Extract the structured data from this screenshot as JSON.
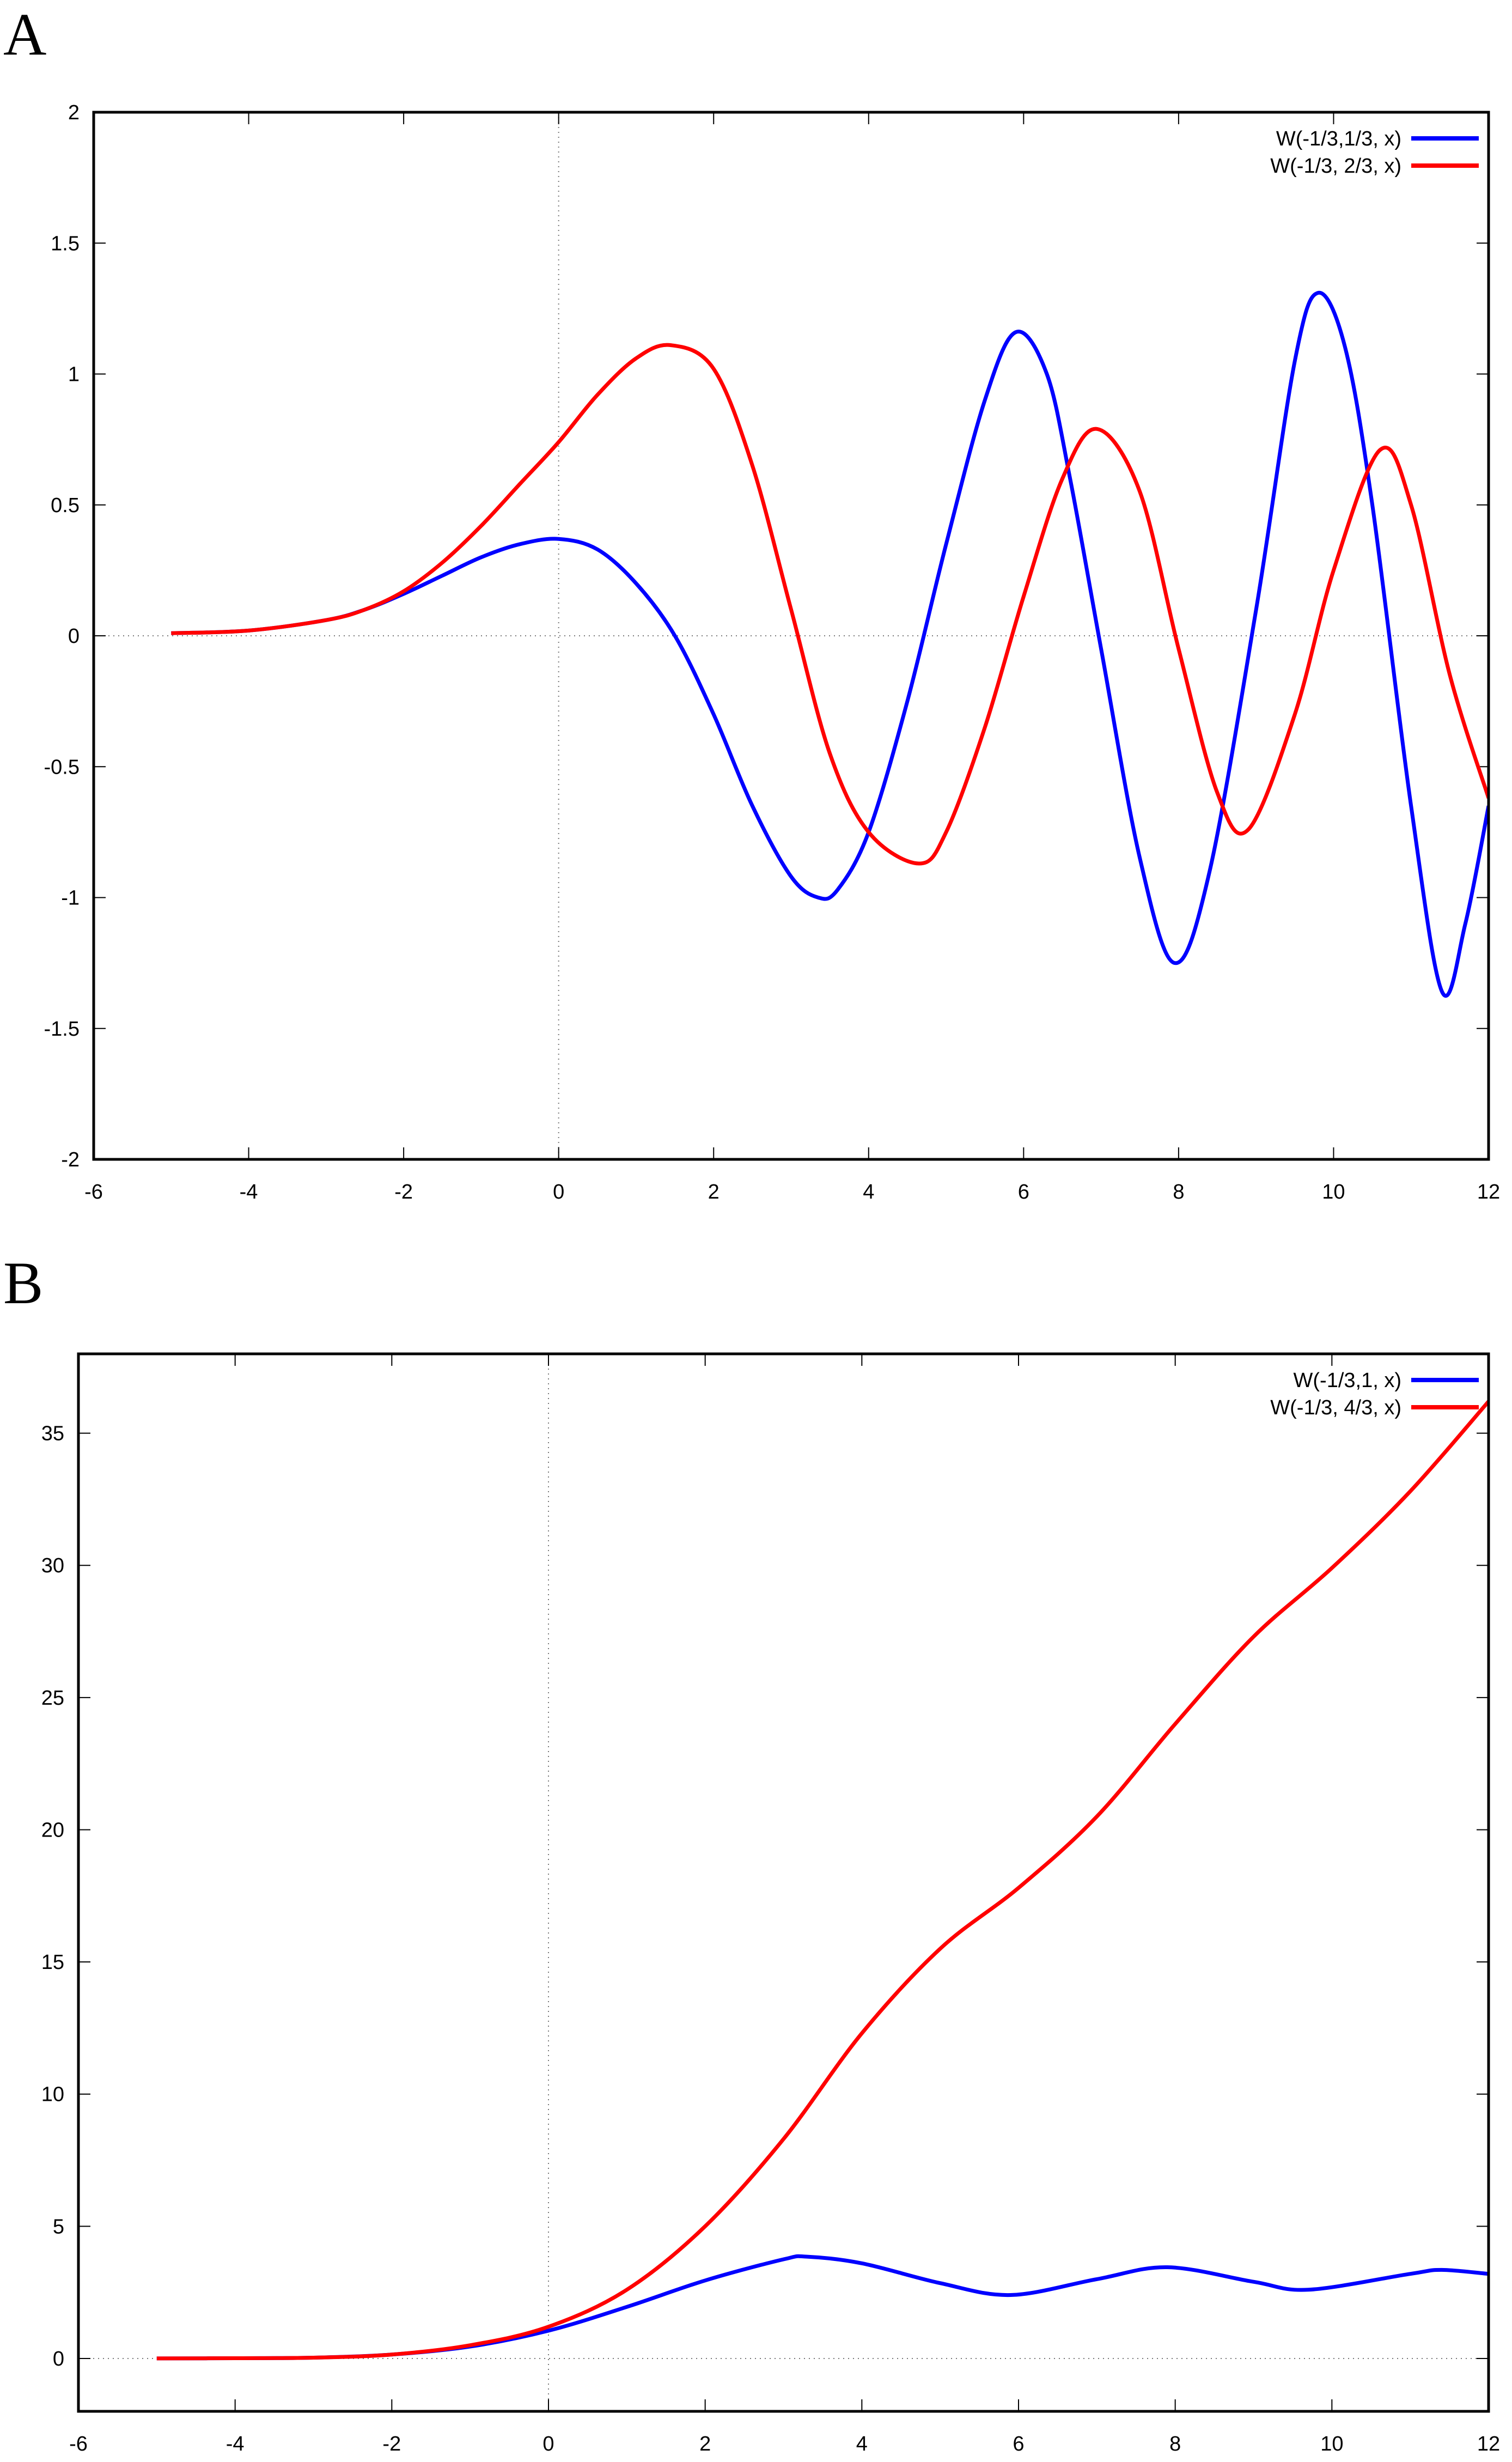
{
  "panels": [
    {
      "label": "A"
    },
    {
      "label": "B"
    }
  ],
  "chart_data": [
    {
      "type": "line",
      "panel": "A",
      "title": "",
      "xlabel": "",
      "ylabel": "",
      "xlim": [
        -6,
        12
      ],
      "ylim": [
        -2,
        2
      ],
      "xticks": [
        -6,
        -4,
        -2,
        0,
        2,
        4,
        6,
        8,
        10,
        12
      ],
      "yticks": [
        -2,
        -1.5,
        -1,
        -0.5,
        0,
        0.5,
        1,
        1.5,
        2
      ],
      "xtick_labels": [
        "-6",
        "-4",
        "-2",
        "0",
        "2",
        "4",
        "6",
        "8",
        "10",
        "12"
      ],
      "ytick_labels": [
        "-2",
        "-1.5",
        "-1",
        "-0.5",
        "0",
        "0.5",
        "1",
        "1.5",
        "2"
      ],
      "grid": false,
      "zero_axes_dotted": true,
      "legend_position": "top-right",
      "series": [
        {
          "name": "W(-1/3,1/3, x)",
          "color": "#0000ff",
          "x": [
            -5,
            -4,
            -3,
            -2.5,
            -2,
            -1.5,
            -1,
            -0.5,
            0,
            0.5,
            1,
            1.5,
            2,
            2.5,
            3,
            3.35,
            3.6,
            4,
            4.5,
            5,
            5.5,
            5.9,
            6.3,
            6.6,
            7,
            7.5,
            7.95,
            8.4,
            9,
            9.5,
            9.8,
            10.15,
            10.5,
            11,
            11.4,
            11.7,
            12
          ],
          "y": [
            0.01,
            0.02,
            0.06,
            0.1,
            0.16,
            0.23,
            0.3,
            0.35,
            0.37,
            0.33,
            0.2,
            0.0,
            -0.3,
            -0.65,
            -0.92,
            -1.0,
            -0.97,
            -0.75,
            -0.25,
            0.35,
            0.9,
            1.16,
            1.0,
            0.6,
            -0.05,
            -0.85,
            -1.25,
            -0.9,
            0.1,
            1.05,
            1.31,
            1.1,
            0.5,
            -0.65,
            -1.36,
            -1.1,
            -0.65
          ]
        },
        {
          "name": "W(-1/3, 2/3, x)",
          "color": "#ff0000",
          "x": [
            -5,
            -4,
            -3,
            -2.5,
            -2,
            -1.5,
            -1,
            -0.5,
            0,
            0.5,
            1,
            1.45,
            2,
            2.5,
            3,
            3.5,
            4,
            4.65,
            5,
            5.5,
            6,
            6.5,
            6.95,
            7.5,
            8,
            8.5,
            8.9,
            9.5,
            10,
            10.6,
            11,
            11.5,
            12
          ],
          "y": [
            0.01,
            0.02,
            0.06,
            0.1,
            0.17,
            0.28,
            0.42,
            0.58,
            0.74,
            0.92,
            1.06,
            1.11,
            1.02,
            0.65,
            0.1,
            -0.45,
            -0.75,
            -0.87,
            -0.75,
            -0.35,
            0.15,
            0.6,
            0.79,
            0.55,
            -0.05,
            -0.6,
            -0.74,
            -0.3,
            0.25,
            0.71,
            0.5,
            -0.15,
            -0.62
          ]
        }
      ]
    },
    {
      "type": "line",
      "panel": "B",
      "title": "",
      "xlabel": "",
      "ylabel": "",
      "xlim": [
        -6,
        12
      ],
      "ylim": [
        -2,
        38
      ],
      "xticks": [
        -6,
        -4,
        -2,
        0,
        2,
        4,
        6,
        8,
        10,
        12
      ],
      "yticks": [
        0,
        5,
        10,
        15,
        20,
        25,
        30,
        35
      ],
      "xtick_labels": [
        "-6",
        "-4",
        "-2",
        "0",
        "2",
        "4",
        "6",
        "8",
        "10",
        "12"
      ],
      "ytick_labels": [
        "0",
        "5",
        "10",
        "15",
        "20",
        "25",
        "30",
        "35"
      ],
      "grid": false,
      "zero_axes_dotted": true,
      "legend_position": "top-right",
      "series": [
        {
          "name": "W(-1/3,1, x)",
          "color": "#0000ff",
          "x": [
            -5,
            -4,
            -3,
            -2,
            -1,
            0,
            1,
            2,
            3,
            3.3,
            4,
            5,
            5.9,
            7,
            7.9,
            9,
            9.7,
            11,
            11.4,
            12
          ],
          "y": [
            0,
            0.01,
            0.03,
            0.15,
            0.45,
            1.05,
            1.95,
            2.95,
            3.75,
            3.85,
            3.6,
            2.85,
            2.4,
            3.0,
            3.45,
            2.9,
            2.6,
            3.2,
            3.35,
            3.2
          ]
        },
        {
          "name": "W(-1/3, 4/3, x)",
          "color": "#ff0000",
          "x": [
            -5,
            -4,
            -3,
            -2,
            -1,
            0,
            1,
            2,
            3,
            4,
            5,
            6,
            7,
            8,
            9,
            10,
            11,
            12
          ],
          "y": [
            0,
            0.01,
            0.03,
            0.15,
            0.5,
            1.2,
            2.6,
            5.0,
            8.3,
            12.3,
            15.5,
            17.8,
            20.5,
            24.0,
            27.3,
            29.9,
            32.8,
            36.2
          ]
        }
      ]
    }
  ]
}
